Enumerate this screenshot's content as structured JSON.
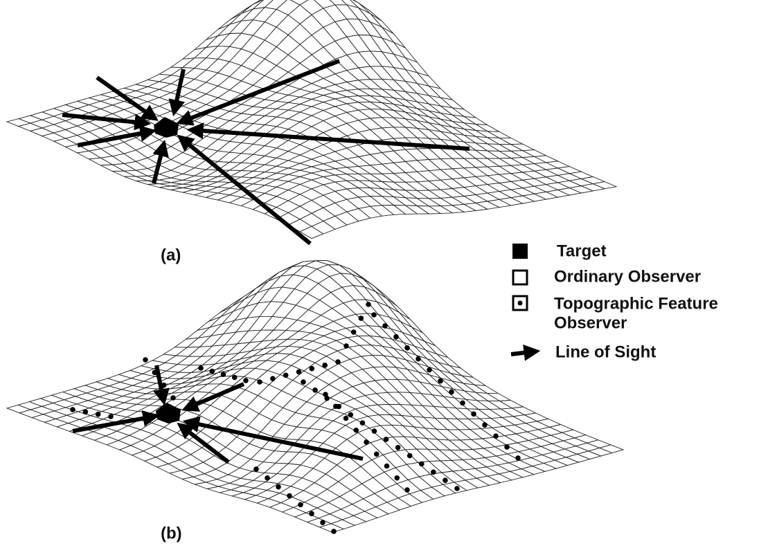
{
  "panels": {
    "a": "(a)",
    "b": "(b)"
  },
  "legend": {
    "target": "Target",
    "ordinary_observer": "Ordinary Observer",
    "topographic_feature_observer": [
      "Topographic Feature",
      "Observer"
    ],
    "line_of_sight": "Line of Sight"
  }
}
